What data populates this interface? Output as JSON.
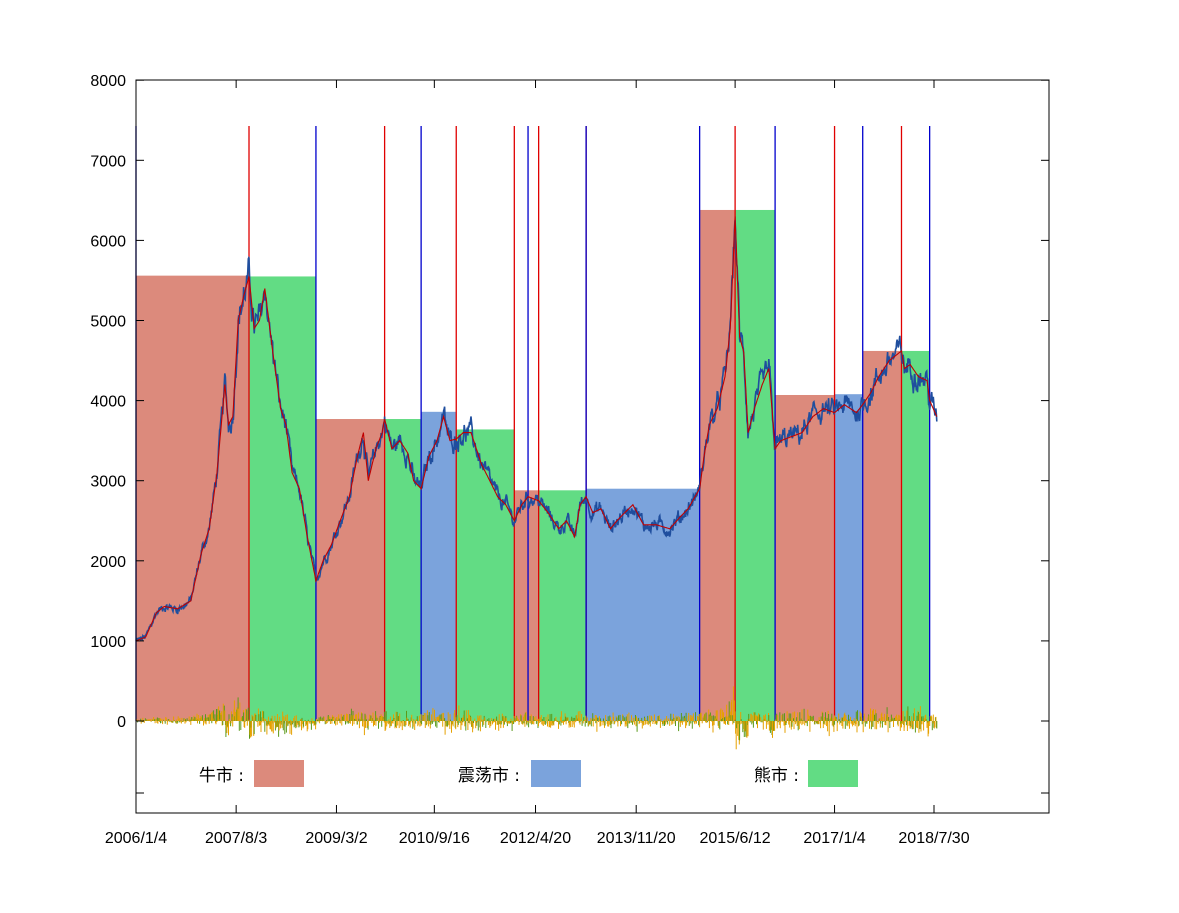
{
  "chart_data": {
    "type": "area",
    "title": "",
    "xlabel": "",
    "ylabel": "",
    "ylim": [
      -1200,
      8000
    ],
    "x_tick_labels": [
      "2006/1/4",
      "2007/8/3",
      "2009/3/2",
      "2010/9/16",
      "2012/4/20",
      "2013/11/20",
      "2015/6/12",
      "2017/1/4",
      "2018/7/30"
    ],
    "x_ticks": [
      {
        "label": "2006/1/4",
        "date": "2006-01-04"
      },
      {
        "label": "2007/8/3",
        "date": "2007-08-03"
      },
      {
        "label": "2009/3/2",
        "date": "2009-03-02"
      },
      {
        "label": "2010/9/16",
        "date": "2010-09-16"
      },
      {
        "label": "2012/4/20",
        "date": "2012-04-20"
      },
      {
        "label": "2013/11/20",
        "date": "2013-11-20"
      },
      {
        "label": "2015/6/12",
        "date": "2015-06-12"
      },
      {
        "label": "2017/1/4",
        "date": "2017-01-04"
      },
      {
        "label": "2018/7/30",
        "date": "2018-07-30"
      }
    ],
    "y_ticks": [
      0,
      1000,
      2000,
      3000,
      4000,
      5000,
      6000,
      7000,
      8000
    ],
    "legend": [
      {
        "label": "牛市 :",
        "color": "#dc8a7c"
      },
      {
        "label": "震荡市 :",
        "color": "#7ba3dc"
      },
      {
        "label": "熊市 :",
        "color": "#62dc84"
      }
    ],
    "legend_position": "bottom",
    "grid": false,
    "colors": {
      "bull": "#dc8a7c",
      "range": "#7ba3dc",
      "bear": "#62dc84",
      "bull_marker": "#e00000",
      "bear_marker": "#0000cc",
      "index_line": "#1f4e9e",
      "trend_line": "#c00000",
      "change_bars": "#e6a100",
      "change_bars_alt": "#5a9a1a"
    },
    "regimes": [
      {
        "type": "bull",
        "start": "2006-01-04",
        "end": "2007-10-16",
        "level": 5560
      },
      {
        "type": "bear",
        "start": "2007-10-16",
        "end": "2008-11-04",
        "level": 5550
      },
      {
        "type": "bull",
        "start": "2008-11-04",
        "end": "2009-12-04",
        "level": 3770
      },
      {
        "type": "bear",
        "start": "2009-12-04",
        "end": "2010-07-02",
        "level": 3770
      },
      {
        "type": "range",
        "start": "2010-07-02",
        "end": "2011-01-20",
        "level": 3860
      },
      {
        "type": "bear",
        "start": "2011-01-20",
        "end": "2011-12-20",
        "level": 3640
      },
      {
        "type": "bull",
        "start": "2011-12-20",
        "end": "2012-05-08",
        "level": 2880
      },
      {
        "type": "bear",
        "start": "2012-05-08",
        "end": "2013-02-05",
        "level": 2880
      },
      {
        "type": "range",
        "start": "2013-02-05",
        "end": "2014-11-20",
        "level": 2900
      },
      {
        "type": "bull",
        "start": "2014-11-20",
        "end": "2015-06-12",
        "level": 6380
      },
      {
        "type": "bear",
        "start": "2015-06-12",
        "end": "2016-01-28",
        "level": 6380
      },
      {
        "type": "bull",
        "start": "2016-01-28",
        "end": "2017-01-04",
        "level": 4070
      },
      {
        "type": "range",
        "start": "2017-01-04",
        "end": "2017-06-15",
        "level": 4080
      },
      {
        "type": "bull",
        "start": "2017-06-15",
        "end": "2018-01-24",
        "level": 4620
      },
      {
        "type": "bear",
        "start": "2018-01-24",
        "end": "2018-07-05",
        "level": 4620
      }
    ],
    "regime_start_markers": [
      {
        "kind": "bull",
        "date": "2007-10-16"
      },
      {
        "kind": "bull",
        "date": "2009-12-04"
      },
      {
        "kind": "bull",
        "date": "2011-01-20"
      },
      {
        "kind": "bull",
        "date": "2011-12-20"
      },
      {
        "kind": "bull",
        "date": "2012-05-08"
      },
      {
        "kind": "bull",
        "date": "2013-02-05"
      },
      {
        "kind": "bull",
        "date": "2015-06-12"
      },
      {
        "kind": "bull",
        "date": "2017-01-04"
      },
      {
        "kind": "bull",
        "date": "2018-01-24"
      },
      {
        "kind": "bear",
        "date": "2006-01-04"
      },
      {
        "kind": "bear",
        "date": "2008-11-04"
      },
      {
        "kind": "bear",
        "date": "2010-07-02"
      },
      {
        "kind": "bear",
        "date": "2012-03-08"
      },
      {
        "kind": "bear",
        "date": "2013-02-05"
      },
      {
        "kind": "bear",
        "date": "2014-11-20"
      },
      {
        "kind": "bear",
        "date": "2016-01-28"
      },
      {
        "kind": "bear",
        "date": "2017-06-15"
      },
      {
        "kind": "bear",
        "date": "2018-07-05"
      }
    ],
    "series": [
      {
        "x": [
          "2006-01-04",
          "2006-03-01",
          "2006-05-01",
          "2006-06-15",
          "2006-09-01",
          "2006-11-15",
          "2007-01-15",
          "2007-03-01",
          "2007-04-15",
          "2007-05-30",
          "2007-06-20",
          "2007-07-15",
          "2007-08-15",
          "2007-09-15",
          "2007-10-16",
          "2007-11-15",
          "2007-12-15",
          "2008-01-15",
          "2008-03-01",
          "2008-04-15",
          "2008-05-15",
          "2008-06-20",
          "2008-08-01",
          "2008-09-15",
          "2008-11-04",
          "2008-12-15",
          "2009-02-01",
          "2009-03-15",
          "2009-05-15",
          "2009-06-30",
          "2009-08-04",
          "2009-09-01",
          "2009-10-15",
          "2009-11-20",
          "2009-12-04",
          "2010-01-15",
          "2010-03-01",
          "2010-04-15",
          "2010-05-20",
          "2010-07-02",
          "2010-08-15",
          "2010-10-01",
          "2010-11-08",
          "2010-12-15",
          "2011-01-20",
          "2011-03-01",
          "2011-04-15",
          "2011-06-15",
          "2011-08-01",
          "2011-09-15",
          "2011-11-01",
          "2011-12-20",
          "2012-02-01",
          "2012-03-08",
          "2012-05-08",
          "2012-07-01",
          "2012-09-01",
          "2012-10-15",
          "2012-12-01",
          "2013-01-01",
          "2013-02-05",
          "2013-03-15",
          "2013-05-01",
          "2013-06-25",
          "2013-08-01",
          "2013-09-15",
          "2013-11-01",
          "2014-01-01",
          "2014-03-15",
          "2014-06-01",
          "2014-08-01",
          "2014-09-15",
          "2014-11-20",
          "2014-12-15",
          "2015-01-15",
          "2015-03-01",
          "2015-04-15",
          "2015-05-15",
          "2015-06-12",
          "2015-07-08",
          "2015-08-01",
          "2015-08-26",
          "2015-10-01",
          "2015-11-15",
          "2015-12-23",
          "2016-01-28",
          "2016-03-01",
          "2016-05-01",
          "2016-07-01",
          "2016-09-01",
          "2016-11-01",
          "2017-01-04",
          "2017-03-01",
          "2017-05-10",
          "2017-06-15",
          "2017-08-01",
          "2017-09-15",
          "2017-11-15",
          "2018-01-24",
          "2018-02-09",
          "2018-03-15",
          "2018-05-01",
          "2018-06-20",
          "2018-07-05",
          "2018-08-15"
        ],
        "y": [
          1000,
          1050,
          1350,
          1430,
          1400,
          1500,
          2100,
          2400,
          3100,
          4200,
          3700,
          3800,
          5000,
          5300,
          5550,
          4900,
          5000,
          5400,
          4600,
          3900,
          3700,
          3100,
          2900,
          2300,
          1750,
          2000,
          2200,
          2450,
          2800,
          3300,
          3600,
          3000,
          3400,
          3600,
          3770,
          3400,
          3500,
          3350,
          3000,
          2900,
          3300,
          3500,
          3800,
          3500,
          3520,
          3600,
          3600,
          3200,
          3000,
          2800,
          2700,
          2500,
          2700,
          2800,
          2750,
          2600,
          2400,
          2500,
          2300,
          2700,
          2800,
          2600,
          2650,
          2400,
          2500,
          2600,
          2700,
          2450,
          2450,
          2400,
          2550,
          2650,
          2900,
          3300,
          3700,
          3900,
          4300,
          4900,
          6300,
          4800,
          4600,
          3600,
          3900,
          4200,
          4400,
          3400,
          3500,
          3550,
          3600,
          3800,
          3900,
          3850,
          3950,
          3850,
          3950,
          4100,
          4300,
          4500,
          4620,
          4400,
          4450,
          4300,
          4250,
          4000,
          3800
        ]
      }
    ]
  }
}
